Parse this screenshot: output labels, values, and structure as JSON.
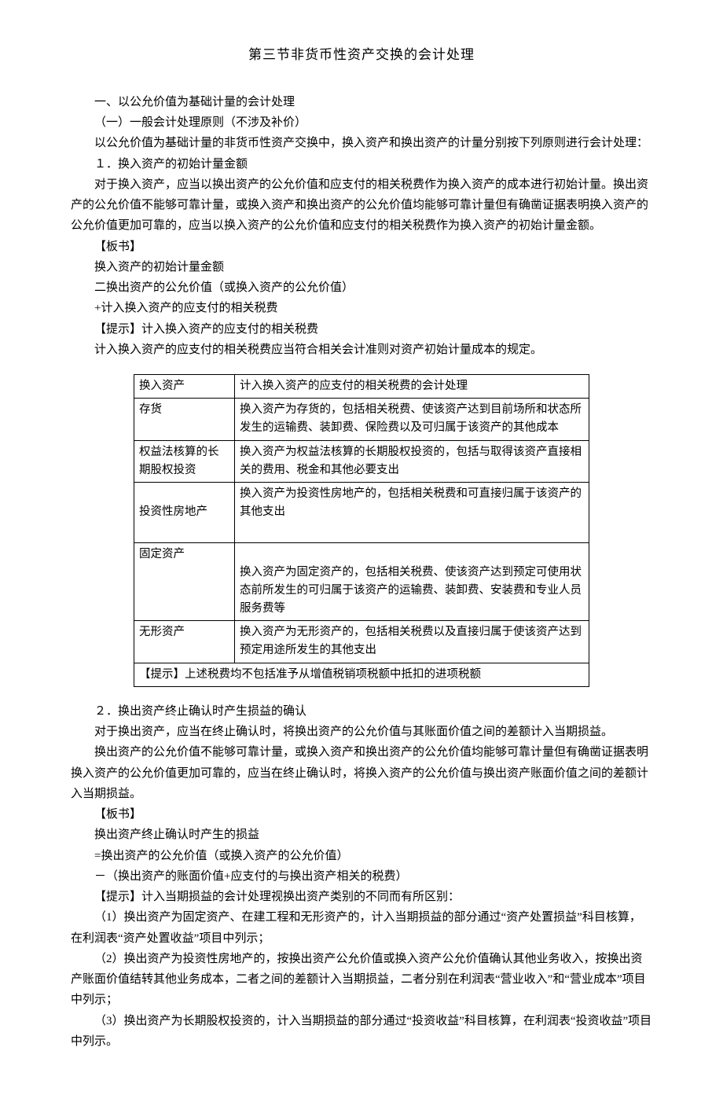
{
  "title": "第三节非货币性资产交换的会计处理",
  "sec1": {
    "h1": "一、以公允价值为基础计量的会计处理",
    "h2": "（一）一般会计处理原则（不涉及补价）",
    "p1": "以公允价值为基础计量的非货币性资产交换中，换入资产和换出资产的计量分别按下列原则进行会计处理：",
    "p2": "１．换入资产的初始计量金额",
    "p3": "对于换入资产，应当以换出资产的公允价值和应支付的相关税费作为换入资产的成本进行初始计量。换出资产的公允价值不能够可靠计量，或换入资产和换出资产的公允价值均能够可靠计量但有确凿证据表明换入资产的公允价值更加可靠的，应当以换入资产的公允价值和应支付的相关税费作为换入资产的初始计量金额。",
    "note1": "【板书】",
    "p4": "换入资产的初始计量金额",
    "p5": "二换出资产的公允价值（或换入资产的公允价值）",
    "p6": "+计入换入资产的应支付的相关税费",
    "p7": "【提示】计入换入资产的应支付的相关税费",
    "p8": "计入换入资产的应支付的相关税费应当符合相关会计准则对资产初始计量成本的规定。"
  },
  "table": {
    "header": {
      "c1": "换入资产",
      "c2": "计入换入资产的应支付的相关税费的会计处理"
    },
    "r1": {
      "c1": "存货",
      "c2": "换入资产为存货的，包括相关税费、使该资产达到目前场所和状态所发生的运输费、装卸费、保险费以及可归属于该资产的其他成本"
    },
    "r2": {
      "c1": "权益法核算的长期股权投资",
      "c2": "换入资产为权益法核算的长期股权投资的，包括与取得该资产直接相关的费用、税金和其他必要支出"
    },
    "r3": {
      "c1": "投资性房地产",
      "c2": "换入资产为投资性房地产的，包括相关税费和可直接归属于该资产的其他支出"
    },
    "r4": {
      "c1": "固定资产",
      "c2": "换入资产为固定资产的，包括相关税费、使该资产达到预定可使用状态前所发生的可归属于该资产的运输费、装卸费、安装费和专业人员服务费等"
    },
    "r5": {
      "c1": "无形资产",
      "c2": "换入资产为无形资产的，包括相关税费以及直接归属于使该资产达到预定用途所发生的其他支出"
    },
    "foot": "【提示】上述税费均不包括准予从增值税销项税额中抵扣的进项税额"
  },
  "sec2": {
    "p1": "２．换出资产终止确认时产生损益的确认",
    "p2": "对于换出资产，应当在终止确认时，将换出资产的公允价值与其账面价值之间的差额计入当期损益。",
    "p3": "换出资产的公允价值不能够可靠计量，或换入资产和换出资产的公允价值均能够可靠计量但有确凿证据表明换入资产的公允价值更加可靠的，应当在终止确认时，将换入资产的公允价值与换出资产账面价值之间的差额计入当期损益。",
    "note1": "【板书】",
    "p4": "换出资产终止确认时产生的损益",
    "p5": "=换出资产的公允价值（或换入资产的公允价值）",
    "p6": "－（换出资产的账面价值+应支付的与换出资产相关的税费）",
    "p7": "【提示】计入当期损益的会计处理视换出资产类别的不同而有所区别：",
    "p8": "（1）换出资产为固定资产、在建工程和无形资产的，计入当期损益的部分通过“资产处置损益”科目核算，在利润表“资产处置收益”项目中列示；",
    "p9": "（2）换出资产为投资性房地产的，按换出资产公允价值或换入资产公允价值确认其他业务收入，按换出资产账面价值结转其他业务成本，二者之间的差额计入当期损益，二者分别在利润表“营业收入”和“营业成本”项目中列示；",
    "p10": "（3）换出资产为长期股权投资的，计入当期损益的部分通过“投资收益”科目核算，在利润表“投资收益”项目中列示。"
  }
}
